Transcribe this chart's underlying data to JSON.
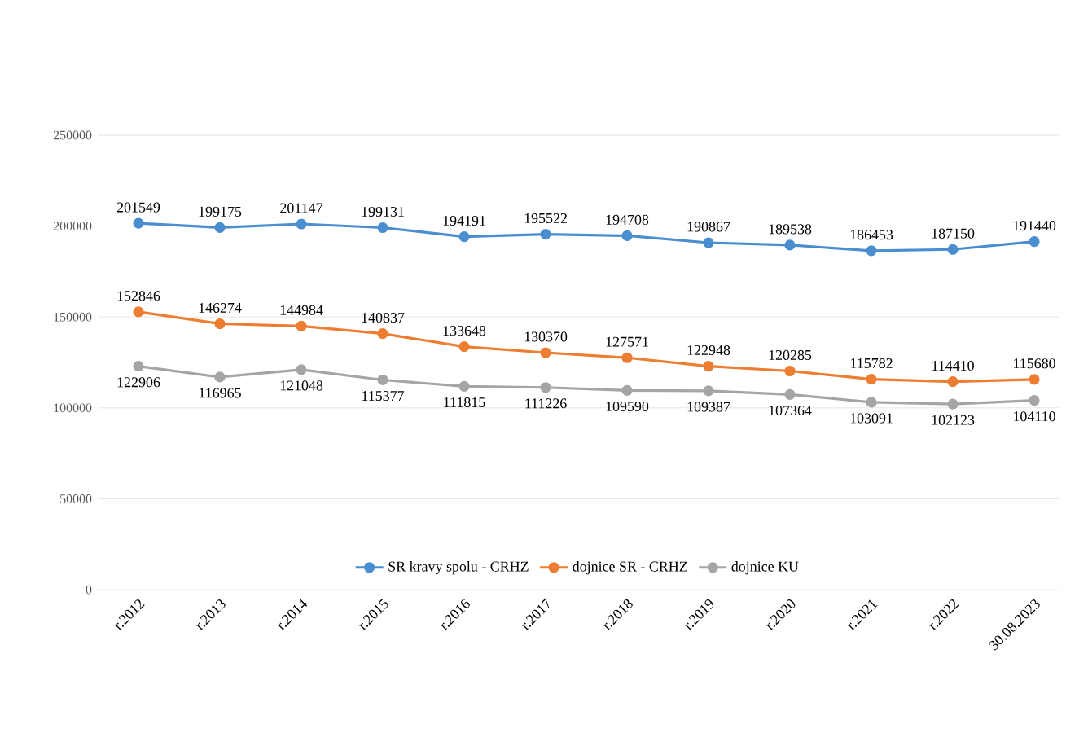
{
  "chart_data": {
    "type": "line",
    "categories": [
      "r.2012",
      "r.2013",
      "r.2014",
      "r.2015",
      "r.2016",
      "r.2017",
      "r.2018",
      "r.2019",
      "r.2020",
      "r.2021",
      "r.2022",
      "30.08.2023"
    ],
    "series": [
      {
        "name": "SR kravy spolu - CRHZ",
        "color": "#4a8ed0",
        "values": [
          201549,
          199175,
          201147,
          199131,
          194191,
          195522,
          194708,
          190867,
          189538,
          186453,
          187150,
          191440
        ]
      },
      {
        "name": "dojnice SR - CRHZ",
        "color": "#ed7d31",
        "values": [
          152846,
          146274,
          144984,
          140837,
          133648,
          130370,
          127571,
          122948,
          120285,
          115782,
          114410,
          115680
        ]
      },
      {
        "name": "dojnice KU",
        "color": "#a5a5a5",
        "values": [
          122906,
          116965,
          121048,
          115377,
          111815,
          111226,
          109590,
          109387,
          107364,
          103091,
          102123,
          104110
        ]
      }
    ],
    "ylim": [
      0,
      250000
    ],
    "yticks": [
      0,
      50000,
      100000,
      150000,
      200000,
      250000
    ],
    "grid": "y",
    "legend": "bottom",
    "marker": "circle",
    "line_style": "solid",
    "data_labels": true
  }
}
